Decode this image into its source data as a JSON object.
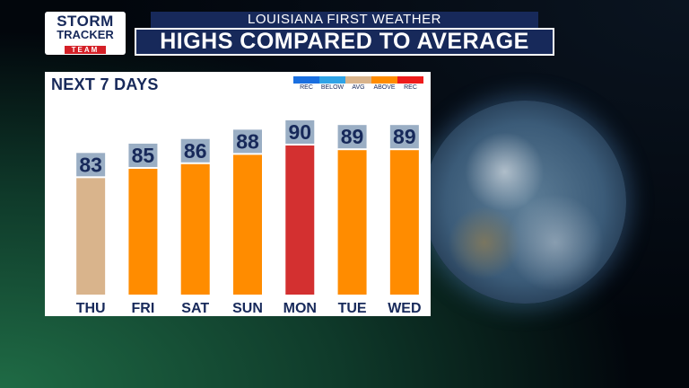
{
  "logo": {
    "line1": "STORM",
    "line2": "TRACKER",
    "line3": "TEAM"
  },
  "header": {
    "subtitle": "LOUISIANA FIRST WEATHER",
    "title": "HIGHS COMPARED TO AVERAGE"
  },
  "panel": {
    "title": "NEXT 7 DAYS"
  },
  "legend": [
    {
      "label": "REC",
      "color": "#1a6fe0"
    },
    {
      "label": "BELOW",
      "color": "#2fa3e6"
    },
    {
      "label": "AVG",
      "color": "#d9b48c"
    },
    {
      "label": "ABOVE",
      "color": "#ff8c00"
    },
    {
      "label": "REC",
      "color": "#ee1c1c"
    }
  ],
  "chart_data": {
    "type": "bar",
    "categories": [
      "THU",
      "FRI",
      "SAT",
      "SUN",
      "MON",
      "TUE",
      "WED"
    ],
    "values": [
      83,
      85,
      86,
      88,
      90,
      89,
      89
    ],
    "categories_status": [
      "AVG",
      "ABOVE",
      "ABOVE",
      "ABOVE",
      "REC",
      "ABOVE",
      "ABOVE"
    ],
    "colors": [
      "#d9b48c",
      "#ff8c00",
      "#ff8c00",
      "#ff8c00",
      "#d33030",
      "#ff8c00",
      "#ff8c00"
    ],
    "label_box_color": "#9aaec4",
    "ylim": [
      58,
      90
    ]
  }
}
